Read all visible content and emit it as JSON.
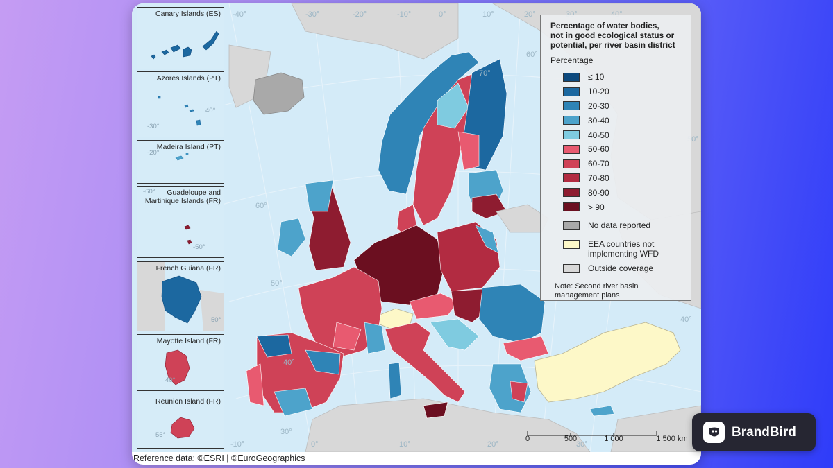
{
  "legend": {
    "title_lines": [
      "Percentage of water bodies,",
      "not in good ecological status or",
      "potential, per river basin district"
    ],
    "subtitle": "Percentage",
    "classes": [
      {
        "label": "≤ 10",
        "color": "#0d4a7e"
      },
      {
        "label": "10-20",
        "color": "#1c68a0"
      },
      {
        "label": "20-30",
        "color": "#2f84b6"
      },
      {
        "label": "30-40",
        "color": "#4da3cb"
      },
      {
        "label": "40-50",
        "color": "#7fcbe0"
      },
      {
        "label": "50-60",
        "color": "#e85a70"
      },
      {
        "label": "60-70",
        "color": "#cf4257"
      },
      {
        "label": "70-80",
        "color": "#b22b41"
      },
      {
        "label": "80-90",
        "color": "#8e1c30"
      },
      {
        "label": "> 90",
        "color": "#6b0f20"
      }
    ],
    "other": [
      {
        "label": "No data reported",
        "color": "#a9a9a9"
      },
      {
        "label": "EEA countries not implementing WFD",
        "color": "#fdf8c8"
      },
      {
        "label": "Outside coverage",
        "color": "#d8d8d8"
      }
    ],
    "note": "Note: Second river basin management plans"
  },
  "insets": [
    {
      "title": "Canary Islands (ES)",
      "labels": []
    },
    {
      "title": "Azores Islands (PT)",
      "labels": [
        "40°",
        "-30°"
      ]
    },
    {
      "title": "Madeira Island (PT)",
      "labels": [
        "-20°"
      ]
    },
    {
      "title": "Guadeloupe and Martinique Islands (FR)",
      "labels": [
        "-60°",
        "-50°"
      ]
    },
    {
      "title": "French Guiana (FR)",
      "labels": [
        "50°"
      ]
    },
    {
      "title": "Mayotte Island (FR)",
      "labels": [
        "40°"
      ]
    },
    {
      "title": "Reunion Island (FR)",
      "labels": [
        "55°"
      ]
    }
  ],
  "graticule_labels": [
    "-40°",
    "-30°",
    "-20°",
    "-10°",
    "0°",
    "10°",
    "20°",
    "30°",
    "40°",
    "50°",
    "60°",
    "70°",
    "60°",
    "50°",
    "40°",
    "30°",
    "-10°",
    "0°",
    "10°",
    "20°",
    "30°",
    "40°"
  ],
  "scale": {
    "labels": [
      "0",
      "500",
      "1 000",
      "1 500 km"
    ]
  },
  "reference": "Reference data: ©ESRI | ©EuroGeographics",
  "brand": {
    "name": "BrandBird"
  }
}
